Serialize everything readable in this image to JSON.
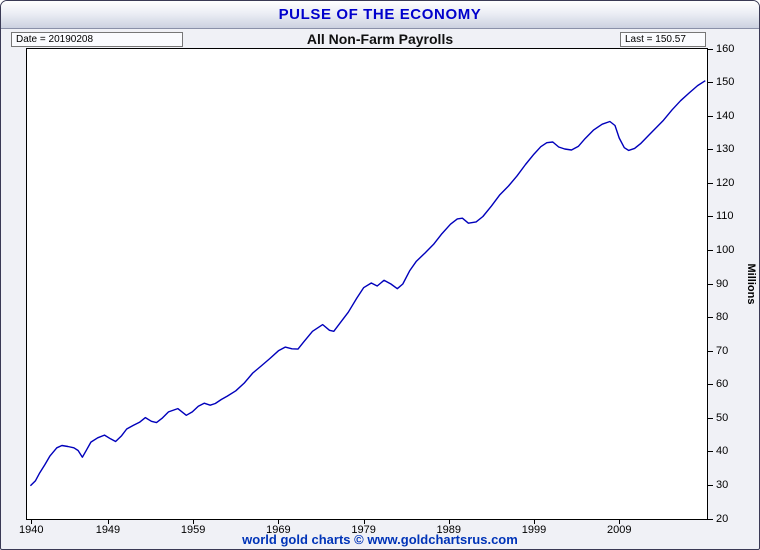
{
  "window": {
    "title": "PULSE OF THE ECONOMY"
  },
  "header": {
    "date_label": "Date = 20190208",
    "chart_title": "All Non-Farm Payrolls",
    "last_label": "Last = 150.57"
  },
  "footer": {
    "credit": "world gold charts © www.goldchartsrus.com"
  },
  "colors": {
    "title_blue": "#0000cc",
    "line_blue": "#0000bb",
    "footer_blue": "#0034b8",
    "plot_background": "#ffffff",
    "window_background": "#f0f1f6"
  },
  "chart_data": {
    "type": "line",
    "title": "All Non-Farm Payrolls",
    "xlabel": "",
    "ylabel": "Millions",
    "ylabel_side": "right",
    "xlim": [
      1939.5,
      2019.3
    ],
    "ylim": [
      20,
      160
    ],
    "y_ticks": [
      20,
      30,
      40,
      50,
      60,
      70,
      80,
      90,
      100,
      110,
      120,
      130,
      140,
      150,
      160
    ],
    "x_ticks": [
      1940,
      1949,
      1959,
      1969,
      1979,
      1989,
      1999,
      2009
    ],
    "grid": false,
    "legend": "none",
    "line_color": "#0000bb",
    "date": "20190208",
    "last_value": 150.57,
    "series": [
      {
        "name": "All Non-Farm Payrolls",
        "points": [
          [
            1939.9,
            29.9
          ],
          [
            1940.5,
            31.4
          ],
          [
            1941.0,
            33.8
          ],
          [
            1941.6,
            36.2
          ],
          [
            1942.2,
            38.8
          ],
          [
            1943.0,
            41.2
          ],
          [
            1943.6,
            41.9
          ],
          [
            1944.3,
            41.6
          ],
          [
            1945.0,
            41.2
          ],
          [
            1945.5,
            40.4
          ],
          [
            1946.0,
            38.4
          ],
          [
            1946.5,
            40.6
          ],
          [
            1947.0,
            42.9
          ],
          [
            1947.8,
            44.2
          ],
          [
            1948.6,
            45.0
          ],
          [
            1949.3,
            43.9
          ],
          [
            1949.9,
            43.1
          ],
          [
            1950.6,
            44.8
          ],
          [
            1951.2,
            46.8
          ],
          [
            1952.0,
            47.9
          ],
          [
            1952.7,
            48.8
          ],
          [
            1953.4,
            50.2
          ],
          [
            1954.1,
            49.1
          ],
          [
            1954.7,
            48.7
          ],
          [
            1955.4,
            50.1
          ],
          [
            1956.1,
            51.9
          ],
          [
            1957.2,
            52.9
          ],
          [
            1958.2,
            50.9
          ],
          [
            1958.9,
            51.9
          ],
          [
            1959.6,
            53.6
          ],
          [
            1960.3,
            54.5
          ],
          [
            1961.0,
            53.9
          ],
          [
            1961.6,
            54.4
          ],
          [
            1962.3,
            55.6
          ],
          [
            1963.0,
            56.6
          ],
          [
            1964.0,
            58.2
          ],
          [
            1965.0,
            60.5
          ],
          [
            1966.0,
            63.5
          ],
          [
            1967.0,
            65.6
          ],
          [
            1968.0,
            67.8
          ],
          [
            1969.0,
            70.1
          ],
          [
            1969.8,
            71.2
          ],
          [
            1970.6,
            70.7
          ],
          [
            1971.3,
            70.6
          ],
          [
            1972.0,
            72.8
          ],
          [
            1973.0,
            75.9
          ],
          [
            1974.2,
            77.9
          ],
          [
            1975.0,
            76.2
          ],
          [
            1975.5,
            75.9
          ],
          [
            1976.3,
            78.6
          ],
          [
            1977.2,
            81.6
          ],
          [
            1978.2,
            85.8
          ],
          [
            1979.0,
            88.9
          ],
          [
            1979.9,
            90.3
          ],
          [
            1980.6,
            89.4
          ],
          [
            1981.4,
            91.1
          ],
          [
            1982.2,
            90.0
          ],
          [
            1982.95,
            88.6
          ],
          [
            1983.6,
            90.0
          ],
          [
            1984.4,
            93.9
          ],
          [
            1985.2,
            96.8
          ],
          [
            1986.2,
            99.2
          ],
          [
            1987.2,
            101.8
          ],
          [
            1988.2,
            105.0
          ],
          [
            1989.2,
            107.8
          ],
          [
            1990.0,
            109.4
          ],
          [
            1990.6,
            109.6
          ],
          [
            1991.3,
            108.1
          ],
          [
            1992.2,
            108.5
          ],
          [
            1993.0,
            110.1
          ],
          [
            1994.0,
            113.2
          ],
          [
            1995.0,
            116.6
          ],
          [
            1996.0,
            119.2
          ],
          [
            1997.0,
            122.2
          ],
          [
            1998.0,
            125.6
          ],
          [
            1999.0,
            128.7
          ],
          [
            1999.8,
            130.9
          ],
          [
            2000.5,
            132.1
          ],
          [
            2001.2,
            132.3
          ],
          [
            2001.9,
            130.8
          ],
          [
            2002.6,
            130.2
          ],
          [
            2003.4,
            129.9
          ],
          [
            2004.2,
            131.0
          ],
          [
            2005.0,
            133.3
          ],
          [
            2006.0,
            135.9
          ],
          [
            2007.0,
            137.6
          ],
          [
            2007.9,
            138.4
          ],
          [
            2008.5,
            137.2
          ],
          [
            2009.0,
            133.5
          ],
          [
            2009.6,
            130.6
          ],
          [
            2010.1,
            129.8
          ],
          [
            2010.8,
            130.4
          ],
          [
            2011.5,
            131.8
          ],
          [
            2012.3,
            133.9
          ],
          [
            2013.2,
            136.2
          ],
          [
            2014.2,
            138.8
          ],
          [
            2015.2,
            141.9
          ],
          [
            2016.2,
            144.6
          ],
          [
            2017.2,
            146.9
          ],
          [
            2018.2,
            149.1
          ],
          [
            2019.1,
            150.57
          ]
        ]
      }
    ]
  }
}
